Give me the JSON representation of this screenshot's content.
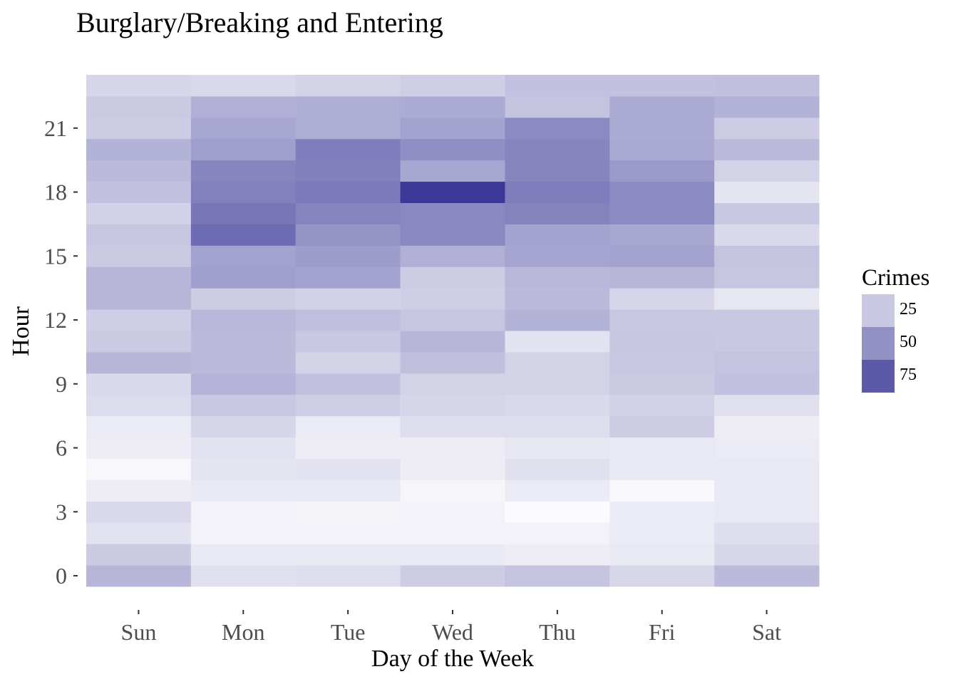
{
  "chart_data": {
    "type": "heatmap",
    "title": "Burglary/Breaking and Entering",
    "xlabel": "Day of the Week",
    "ylabel": "Hour",
    "categories": [
      "Sun",
      "Mon",
      "Tue",
      "Wed",
      "Thu",
      "Fri",
      "Sat"
    ],
    "y_categories": [
      0,
      1,
      2,
      3,
      4,
      5,
      6,
      7,
      8,
      9,
      10,
      11,
      12,
      13,
      14,
      15,
      16,
      17,
      18,
      19,
      20,
      21,
      22,
      23
    ],
    "y_ticks": [
      0,
      3,
      6,
      9,
      12,
      15,
      18,
      21
    ],
    "legend": {
      "title": "Crimes",
      "entries": [
        25,
        50,
        75
      ],
      "placement": "right"
    },
    "color_scale": {
      "low": "#ffffff",
      "high": "#3b3897",
      "min": 0,
      "max": 90
    },
    "grid": false,
    "values": [
      [
        33,
        14,
        15,
        23,
        27,
        18,
        31
      ],
      [
        24,
        10,
        10,
        10,
        8,
        10,
        18
      ],
      [
        13,
        6,
        6,
        6,
        6,
        9,
        15
      ],
      [
        17,
        6,
        5,
        6,
        2,
        9,
        10
      ],
      [
        8,
        10,
        10,
        4,
        9,
        3,
        10
      ],
      [
        3,
        12,
        13,
        8,
        14,
        10,
        10
      ],
      [
        8,
        13,
        8,
        8,
        11,
        10,
        9
      ],
      [
        9,
        19,
        9,
        15,
        15,
        23,
        8
      ],
      [
        16,
        25,
        22,
        19,
        17,
        21,
        14
      ],
      [
        17,
        34,
        28,
        20,
        20,
        24,
        28
      ],
      [
        33,
        31,
        20,
        29,
        20,
        25,
        27
      ],
      [
        24,
        31,
        25,
        33,
        13,
        26,
        25
      ],
      [
        22,
        32,
        29,
        26,
        35,
        25,
        25
      ],
      [
        33,
        23,
        21,
        22,
        31,
        19,
        11
      ],
      [
        33,
        44,
        42,
        23,
        32,
        33,
        26
      ],
      [
        24,
        42,
        45,
        36,
        41,
        42,
        27
      ],
      [
        26,
        67,
        48,
        54,
        42,
        40,
        17
      ],
      [
        21,
        62,
        55,
        54,
        56,
        53,
        25
      ],
      [
        28,
        57,
        60,
        90,
        59,
        53,
        12
      ],
      [
        31,
        55,
        58,
        40,
        55,
        46,
        20
      ],
      [
        35,
        44,
        59,
        51,
        55,
        39,
        31
      ],
      [
        23,
        40,
        37,
        42,
        53,
        38,
        23
      ],
      [
        24,
        36,
        37,
        38,
        27,
        38,
        35
      ],
      [
        19,
        17,
        20,
        22,
        28,
        28,
        29
      ]
    ]
  }
}
